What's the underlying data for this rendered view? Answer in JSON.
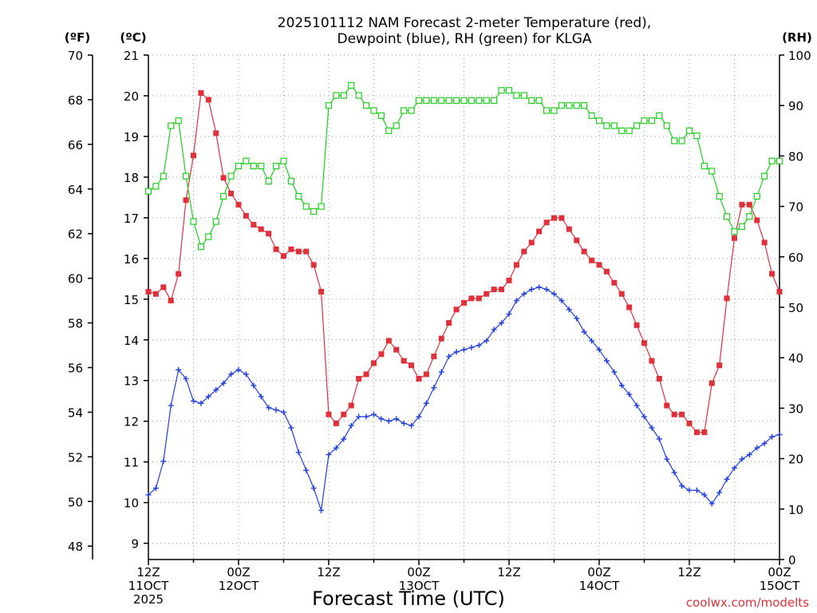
{
  "chart_data": {
    "type": "line",
    "title_line1": "2025101112 NAM Forecast 2-meter Temperature (red),",
    "title_line2": "Dewpoint (blue), RH (green) for KLGA",
    "unit_f": "(ºF)",
    "unit_c": "(ºC)",
    "unit_rh": "(RH)",
    "xlabel": "Forecast Time (UTC)",
    "credit": "coolwx.com/modelts",
    "x_range_hours": [
      0,
      84
    ],
    "y_f_range": [
      47.4,
      70
    ],
    "y_c_range": [
      8.6,
      21
    ],
    "y_rh_range": [
      0,
      100
    ],
    "f_ticks": [
      "48",
      "50",
      "52",
      "54",
      "56",
      "58",
      "60",
      "62",
      "64",
      "66",
      "68",
      "70"
    ],
    "c_ticks": [
      "9",
      "10",
      "11",
      "12",
      "13",
      "14",
      "15",
      "16",
      "17",
      "18",
      "19",
      "20",
      "21"
    ],
    "rh_ticks": [
      "0",
      "10",
      "20",
      "30",
      "40",
      "50",
      "60",
      "70",
      "80",
      "90",
      "100"
    ],
    "x_ticks": [
      {
        "hour": 0,
        "line1": "12Z",
        "line2": "11OCT",
        "line3": "2025"
      },
      {
        "hour": 12,
        "line1": "00Z",
        "line2": "12OCT",
        "line3": ""
      },
      {
        "hour": 24,
        "line1": "12Z",
        "line2": "",
        "line3": ""
      },
      {
        "hour": 36,
        "line1": "00Z",
        "line2": "13OCT",
        "line3": ""
      },
      {
        "hour": 48,
        "line1": "12Z",
        "line2": "",
        "line3": ""
      },
      {
        "hour": 60,
        "line1": "00Z",
        "line2": "14OCT",
        "line3": ""
      },
      {
        "hour": 72,
        "line1": "12Z",
        "line2": "",
        "line3": ""
      },
      {
        "hour": 84,
        "line1": "00Z",
        "line2": "15OCT",
        "line3": ""
      }
    ],
    "grid": true,
    "series": [
      {
        "name": "Temperature",
        "units": "F",
        "color": "#e0303a",
        "marker": "filled-square",
        "values": [
          59.4,
          59.3,
          59.6,
          59.0,
          60.2,
          63.5,
          65.5,
          68.3,
          68.0,
          66.5,
          64.5,
          63.8,
          63.3,
          62.8,
          62.4,
          62.2,
          62.0,
          61.3,
          61.0,
          61.3,
          61.2,
          61.2,
          60.6,
          59.4,
          53.9,
          53.5,
          53.9,
          54.3,
          55.5,
          55.7,
          56.2,
          56.6,
          57.2,
          56.8,
          56.3,
          56.1,
          55.5,
          55.7,
          56.5,
          57.3,
          58.0,
          58.6,
          58.9,
          59.1,
          59.1,
          59.3,
          59.5,
          59.5,
          59.9,
          60.6,
          61.2,
          61.6,
          62.1,
          62.5,
          62.7,
          62.7,
          62.2,
          61.7,
          61.2,
          60.8,
          60.6,
          60.3,
          59.8,
          59.3,
          58.7,
          57.9,
          57.1,
          56.3,
          55.5,
          54.3,
          53.9,
          53.9,
          53.5,
          53.1,
          53.1,
          55.3,
          56.1,
          59.1,
          61.8,
          63.3,
          63.3,
          62.6,
          61.6,
          60.2,
          59.4
        ]
      },
      {
        "name": "Dewpoint",
        "units": "F",
        "color": "#1f3fe0",
        "marker": "plus",
        "values": [
          50.3,
          50.6,
          51.8,
          54.3,
          55.9,
          55.5,
          54.5,
          54.4,
          54.7,
          55.0,
          55.3,
          55.7,
          55.9,
          55.7,
          55.2,
          54.7,
          54.2,
          54.1,
          54.0,
          53.3,
          52.2,
          51.4,
          50.6,
          49.6,
          52.1,
          52.4,
          52.8,
          53.4,
          53.8,
          53.8,
          53.9,
          53.7,
          53.6,
          53.7,
          53.5,
          53.4,
          53.8,
          54.4,
          55.1,
          55.8,
          56.5,
          56.7,
          56.8,
          56.9,
          57.0,
          57.2,
          57.7,
          58.0,
          58.4,
          59.0,
          59.3,
          59.5,
          59.6,
          59.5,
          59.3,
          59.0,
          58.6,
          58.2,
          57.6,
          57.2,
          56.8,
          56.3,
          55.8,
          55.2,
          54.8,
          54.3,
          53.8,
          53.3,
          52.8,
          51.9,
          51.3,
          50.7,
          50.5,
          50.5,
          50.3,
          49.9,
          50.4,
          51.0,
          51.5,
          51.9,
          52.1,
          52.4,
          52.6,
          52.9,
          53.0
        ]
      },
      {
        "name": "RH",
        "units": "%",
        "color": "#1fcf1f",
        "marker": "open-square",
        "values": [
          73,
          74,
          76,
          86,
          87,
          76,
          67,
          62,
          64,
          67,
          72,
          76,
          78,
          79,
          78,
          78,
          75,
          78,
          79,
          75,
          72,
          70,
          69,
          70,
          90,
          92,
          92,
          94,
          92,
          90,
          89,
          88,
          85,
          86,
          89,
          89,
          91,
          91,
          91,
          91,
          91,
          91,
          91,
          91,
          91,
          91,
          91,
          93,
          93,
          92,
          92,
          91,
          91,
          89,
          89,
          90,
          90,
          90,
          90,
          88,
          87,
          86,
          86,
          85,
          85,
          86,
          87,
          87,
          88,
          86,
          83,
          83,
          85,
          84,
          78,
          77,
          72,
          68,
          65,
          66,
          68,
          72,
          76,
          79,
          79
        ]
      }
    ]
  }
}
